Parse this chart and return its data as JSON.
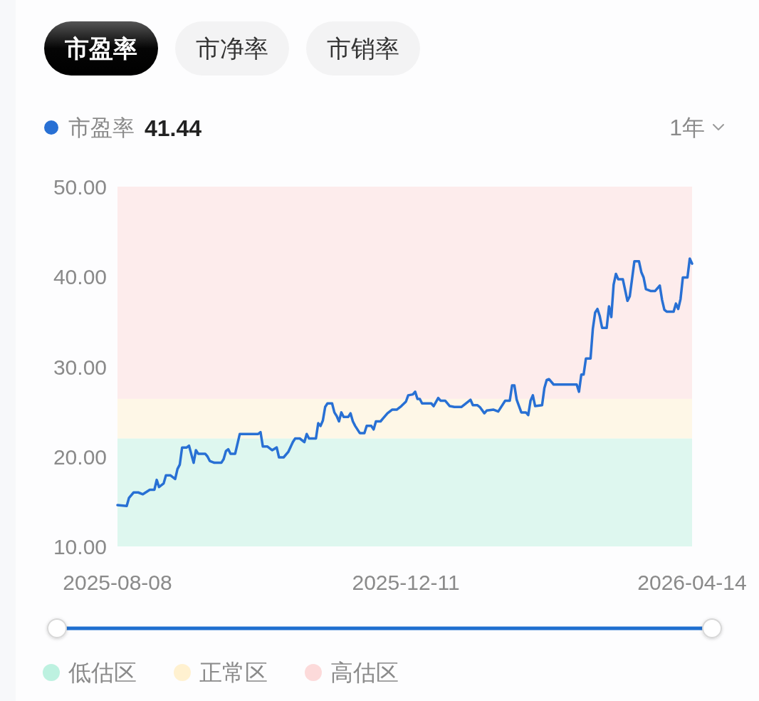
{
  "chart_data": {
    "type": "line",
    "title": "市盈率",
    "annotations": [
      "市净率",
      "市销率",
      "41.44",
      "1年"
    ],
    "legend": "left",
    "x": [
      "2025-08-08",
      "2025-08-12",
      "2025-08-13",
      "2025-08-15",
      "2025-08-17",
      "2025-08-19",
      "2025-08-22",
      "2025-08-24",
      "2025-08-25",
      "2025-08-26",
      "2025-08-28",
      "2025-08-29",
      "2025-08-31",
      "2025-09-02",
      "2025-09-03",
      "2025-09-04",
      "2025-09-05",
      "2025-09-07",
      "2025-09-08",
      "2025-09-10",
      "2025-09-11",
      "2025-09-12",
      "2025-09-15",
      "2025-09-16",
      "2025-09-17",
      "2025-09-19",
      "2025-09-22",
      "2025-09-23",
      "2025-09-24",
      "2025-09-25",
      "2025-09-26",
      "2025-09-28",
      "2025-09-30",
      "2025-10-08",
      "2025-10-09",
      "2025-10-10",
      "2025-10-12",
      "2025-10-14",
      "2025-10-16",
      "2025-10-17",
      "2025-10-19",
      "2025-10-21",
      "2025-10-23",
      "2025-10-24",
      "2025-10-26",
      "2025-10-28",
      "2025-10-29",
      "2025-10-30",
      "2025-11-02",
      "2025-11-03",
      "2025-11-04",
      "2025-11-05",
      "2025-11-06",
      "2025-11-07",
      "2025-11-09",
      "2025-11-10",
      "2025-11-11",
      "2025-11-12",
      "2025-11-13",
      "2025-11-14",
      "2025-11-16",
      "2025-11-17",
      "2025-11-18",
      "2025-11-19",
      "2025-11-21",
      "2025-11-23",
      "2025-11-24",
      "2025-11-26",
      "2025-11-27",
      "2025-11-28",
      "2025-11-30",
      "2025-12-01",
      "2025-12-03",
      "2025-12-05",
      "2025-12-07",
      "2025-12-09",
      "2025-12-11",
      "2025-12-12",
      "2025-12-14",
      "2025-12-15",
      "2025-12-16",
      "2025-12-17",
      "2025-12-18",
      "2025-12-22",
      "2025-12-23",
      "2025-12-25",
      "2025-12-26",
      "2025-12-28",
      "2025-12-30",
      "2026-01-01",
      "2026-01-04",
      "2026-01-05",
      "2026-01-08",
      "2026-01-09",
      "2026-01-11",
      "2026-01-12",
      "2026-01-14",
      "2026-01-15",
      "2026-01-18",
      "2026-01-20",
      "2026-01-23",
      "2026-01-25",
      "2026-01-26",
      "2026-01-27",
      "2026-01-28",
      "2026-01-30",
      "2026-02-01",
      "2026-02-02",
      "2026-02-03",
      "2026-02-04",
      "2026-02-05",
      "2026-02-08",
      "2026-02-09",
      "2026-02-10",
      "2026-02-11",
      "2026-02-13",
      "2026-02-23",
      "2026-02-24",
      "2026-02-25",
      "2026-02-26",
      "2026-02-27",
      "2026-03-01",
      "2026-03-02",
      "2026-03-03",
      "2026-03-04",
      "2026-03-05",
      "2026-03-06",
      "2026-03-08",
      "2026-03-09",
      "2026-03-10",
      "2026-03-11",
      "2026-03-12",
      "2026-03-13",
      "2026-03-15",
      "2026-03-17",
      "2026-03-18",
      "2026-03-20",
      "2026-03-22",
      "2026-03-23",
      "2026-03-24",
      "2026-03-25",
      "2026-03-27",
      "2026-03-29",
      "2026-03-31",
      "2026-04-01",
      "2026-04-02",
      "2026-04-03",
      "2026-04-06",
      "2026-04-07",
      "2026-04-08",
      "2026-04-09",
      "2026-04-10",
      "2026-04-12",
      "2026-04-13",
      "2026-04-14"
    ],
    "series": [
      {
        "name": "市盈率",
        "color": "#2870d4",
        "values": [
          14.6,
          14.5,
          15.4,
          16.0,
          16.0,
          15.8,
          16.3,
          16.3,
          17.4,
          16.6,
          17.0,
          17.9,
          17.9,
          17.5,
          18.6,
          19.1,
          21.0,
          21.0,
          21.2,
          19.3,
          20.7,
          20.3,
          20.3,
          20.0,
          19.5,
          19.3,
          19.3,
          19.7,
          20.6,
          20.8,
          20.3,
          20.3,
          22.5,
          22.5,
          22.7,
          21.1,
          21.1,
          20.7,
          21.0,
          19.9,
          19.9,
          20.5,
          21.6,
          22.0,
          22.0,
          21.6,
          22.5,
          22.0,
          22.0,
          23.7,
          23.4,
          24.0,
          25.5,
          25.9,
          25.9,
          24.9,
          24.5,
          23.9,
          24.9,
          24.4,
          24.4,
          24.8,
          23.9,
          23.4,
          22.6,
          22.6,
          23.4,
          23.4,
          23.0,
          23.9,
          23.9,
          24.2,
          24.8,
          25.2,
          25.2,
          25.6,
          26.1,
          26.8,
          26.9,
          27.2,
          26.4,
          26.4,
          25.9,
          25.9,
          25.6,
          26.5,
          26.2,
          26.2,
          25.6,
          25.5,
          25.5,
          25.7,
          26.3,
          25.7,
          25.7,
          25.5,
          24.8,
          25.1,
          25.2,
          25.0,
          26.2,
          26.2,
          27.9,
          27.9,
          26.3,
          24.9,
          24.9,
          24.6,
          26.2,
          26.8,
          25.6,
          25.7,
          27.6,
          28.5,
          28.6,
          28.0,
          28.0,
          27.2,
          29.1,
          29.1,
          30.9,
          30.9,
          34.2,
          36.0,
          36.4,
          35.6,
          34.3,
          34.3,
          36.7,
          35.5,
          39.1,
          40.3,
          39.7,
          39.7,
          37.3,
          37.8,
          41.7,
          41.7,
          40.5,
          39.9,
          38.6,
          38.4,
          38.4,
          39.0,
          37.4,
          36.3,
          36.1,
          36.1,
          37.0,
          36.4,
          37.5,
          39.9,
          39.9,
          42.0,
          41.44
        ]
      }
    ],
    "xlim": [
      "2025-08-08",
      "2026-04-14"
    ],
    "xticks": [
      "2025-08-08",
      "2025-12-11",
      "2026-04-14"
    ],
    "ylim": [
      10,
      50
    ],
    "yticks": [
      {
        "value": 10,
        "label": "10.00"
      },
      {
        "value": 20,
        "label": "20.00"
      },
      {
        "value": 30,
        "label": "30.00"
      },
      {
        "value": 40,
        "label": "40.00"
      },
      {
        "value": 50,
        "label": "50.00"
      }
    ],
    "bands": [
      {
        "axis": "y",
        "from": 10,
        "to": 22.0,
        "label": "低估区",
        "color": "#b2eedb"
      },
      {
        "axis": "y",
        "from": 22.0,
        "to": 26.4,
        "label": "正常区",
        "color": "#ffefc8"
      },
      {
        "axis": "y",
        "from": 26.4,
        "to": 50,
        "label": "高估区",
        "color": "#fcd3d3"
      }
    ]
  }
}
